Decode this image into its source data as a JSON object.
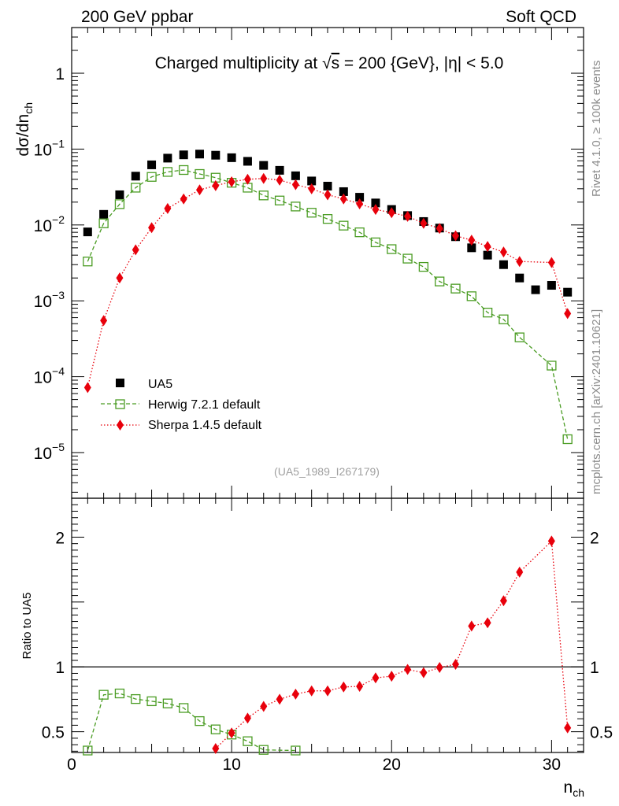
{
  "header": {
    "left": "200 GeV ppbar",
    "right": "Soft QCD"
  },
  "side": {
    "rivet": "Rivet 4.1.0, ≥ 100k events",
    "mcplots": "mcplots.cern.ch [arXiv:2401.10621]"
  },
  "chart_data": [
    {
      "type": "scatter",
      "title": "Charged multiplicity at √s = 200 {GeV}, |η| < 5.0",
      "title_parts": {
        "pre": "Charged multiplicity at ",
        "root": "√",
        "s": "s",
        "post": " = 200 {GeV}, |η| < 5.0"
      },
      "ylabel": "dσ/dn",
      "ylabel_sub": "ch",
      "yscale": "log",
      "ylim": [
        2.5e-06,
        4
      ],
      "xlim": [
        0,
        32
      ],
      "y_ticks": [
        {
          "value": 1,
          "label": "1"
        },
        {
          "value": 0.1,
          "base": "10",
          "exp": "−1"
        },
        {
          "value": 0.01,
          "base": "10",
          "exp": "−2"
        },
        {
          "value": 0.001,
          "base": "10",
          "exp": "−3"
        },
        {
          "value": 0.0001,
          "base": "10",
          "exp": "−4"
        },
        {
          "value": 1e-05,
          "base": "10",
          "exp": "−5"
        }
      ],
      "watermark": "(UA5_1989_I267179)",
      "legend_position": "lower-left",
      "series": [
        {
          "name": "UA5",
          "style": "black-squares",
          "x": [
            1,
            2,
            3,
            4,
            5,
            6,
            7,
            8,
            9,
            10,
            11,
            12,
            13,
            14,
            15,
            16,
            17,
            18,
            19,
            20,
            21,
            22,
            23,
            24,
            25,
            26,
            27,
            28,
            29,
            30,
            31
          ],
          "y": [
            0.0081,
            0.0138,
            0.025,
            0.044,
            0.062,
            0.076,
            0.084,
            0.086,
            0.083,
            0.077,
            0.069,
            0.061,
            0.0525,
            0.0445,
            0.038,
            0.0325,
            0.0275,
            0.0232,
            0.0195,
            0.016,
            0.0133,
            0.0111,
            0.0091,
            0.007,
            0.005,
            0.004,
            0.003,
            0.002,
            0.0014,
            0.0016,
            0.0013
          ]
        },
        {
          "name": "Herwig 7.2.1 default",
          "style": "green-open-squares-dashed",
          "x": [
            1,
            2,
            3,
            4,
            5,
            6,
            7,
            8,
            9,
            10,
            11,
            12,
            13,
            14,
            15,
            16,
            17,
            18,
            19,
            20,
            21,
            22,
            23,
            24,
            25,
            26,
            27,
            28,
            30,
            31
          ],
          "y": [
            0.0033,
            0.0105,
            0.0188,
            0.031,
            0.043,
            0.05,
            0.053,
            0.047,
            0.042,
            0.036,
            0.031,
            0.0245,
            0.021,
            0.0175,
            0.0145,
            0.012,
            0.0098,
            0.008,
            0.0059,
            0.0048,
            0.0036,
            0.0028,
            0.0018,
            0.00145,
            0.00115,
            0.0007,
            0.00057,
            0.00033,
            0.00014,
            1.5e-05
          ]
        },
        {
          "name": "Sherpa 1.4.5 default",
          "style": "red-diamonds-dotted",
          "x": [
            1,
            2,
            3,
            4,
            5,
            6,
            7,
            8,
            9,
            10,
            11,
            12,
            13,
            14,
            15,
            16,
            17,
            18,
            19,
            20,
            21,
            22,
            23,
            24,
            25,
            26,
            27,
            28,
            30,
            31
          ],
          "y": [
            7.2e-05,
            0.00055,
            0.002,
            0.0047,
            0.0092,
            0.0165,
            0.022,
            0.029,
            0.033,
            0.037,
            0.04,
            0.041,
            0.039,
            0.034,
            0.03,
            0.025,
            0.022,
            0.019,
            0.016,
            0.0145,
            0.013,
            0.0105,
            0.009,
            0.0072,
            0.0063,
            0.0052,
            0.0044,
            0.0033,
            0.0032,
            0.00068
          ]
        }
      ]
    },
    {
      "type": "scatter",
      "ylabel": "Ratio to UA5",
      "xlabel": "n",
      "xlabel_sub": "ch",
      "xlim": [
        0,
        32
      ],
      "ylim": [
        0.34,
        2.3
      ],
      "x_ticks": [
        {
          "value": 0,
          "label": "0"
        },
        {
          "value": 10,
          "label": "10"
        },
        {
          "value": 20,
          "label": "20"
        },
        {
          "value": 30,
          "label": "30"
        }
      ],
      "y_ticks": [
        {
          "value": 0.5,
          "label": "0.5"
        },
        {
          "value": 1,
          "label": "1"
        },
        {
          "value": 2,
          "label": "2"
        }
      ],
      "reference_line": 1,
      "series": [
        {
          "name": "Herwig 7.2.1 default",
          "style": "green-open-squares-dashed",
          "x": [
            1,
            2,
            3,
            4,
            5,
            6,
            7,
            8,
            9,
            10,
            11,
            12,
            14
          ],
          "y": [
            0.355,
            0.785,
            0.795,
            0.752,
            0.735,
            0.718,
            0.683,
            0.582,
            0.518,
            0.478,
            0.427,
            0.36,
            0.355
          ]
        },
        {
          "name": "Sherpa 1.4.5 default",
          "style": "red-diamonds-dotted",
          "x": [
            9,
            10,
            11,
            12,
            13,
            14,
            15,
            16,
            17,
            18,
            19,
            20,
            21,
            22,
            23,
            24,
            25,
            26,
            27,
            28,
            30,
            31
          ],
          "y": [
            0.37,
            0.49,
            0.605,
            0.695,
            0.75,
            0.79,
            0.815,
            0.815,
            0.845,
            0.85,
            0.915,
            0.928,
            0.98,
            0.955,
            0.995,
            1.02,
            1.315,
            1.34,
            1.51,
            1.73,
            1.97,
            0.53
          ]
        }
      ]
    }
  ]
}
